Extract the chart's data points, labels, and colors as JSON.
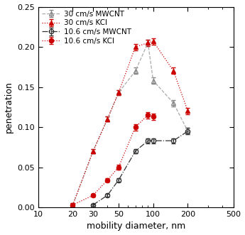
{
  "series": [
    {
      "label": "30 cm/s MWCNT",
      "x": [
        20,
        30,
        40,
        50,
        70,
        90,
        100,
        150,
        200
      ],
      "y": [
        0.003,
        0.07,
        0.11,
        0.143,
        0.17,
        0.205,
        0.158,
        0.13,
        0.095
      ],
      "yerr": [
        0.002,
        0.003,
        0.003,
        0.003,
        0.004,
        0.004,
        0.004,
        0.004,
        0.004
      ],
      "color": "#aaaaaa",
      "marker": "^",
      "mfc": "none",
      "mec": "#888888",
      "ls": "--"
    },
    {
      "label": "30 cm/s KCl",
      "x": [
        20,
        30,
        40,
        50,
        70,
        90,
        100,
        150,
        200
      ],
      "y": [
        0.003,
        0.07,
        0.11,
        0.143,
        0.2,
        0.205,
        0.207,
        0.17,
        0.12
      ],
      "yerr": [
        0.002,
        0.003,
        0.003,
        0.003,
        0.004,
        0.004,
        0.004,
        0.004,
        0.004
      ],
      "color": "#cc0000",
      "marker": "^",
      "mfc": "#cc0000",
      "mec": "#cc0000",
      "ls": ":"
    },
    {
      "label": "10.6 cm/s MWCNT",
      "x": [
        20,
        30,
        40,
        50,
        70,
        90,
        100,
        150,
        200
      ],
      "y": [
        null,
        0.003,
        0.015,
        0.034,
        0.07,
        0.083,
        0.083,
        0.083,
        0.095
      ],
      "yerr": [
        null,
        0.001,
        0.002,
        0.002,
        0.003,
        0.003,
        0.003,
        0.003,
        0.004
      ],
      "color": "#333333",
      "marker": "o",
      "mfc": "none",
      "mec": "#333333",
      "ls": "-."
    },
    {
      "label": "10.6 cm/s KCl",
      "x": [
        20,
        30,
        40,
        50,
        70,
        90,
        100,
        150,
        200
      ],
      "y": [
        0.003,
        0.015,
        0.034,
        0.05,
        0.1,
        0.115,
        0.113,
        null,
        null
      ],
      "yerr": [
        0.001,
        0.002,
        0.002,
        0.003,
        0.004,
        0.004,
        0.004,
        null,
        null
      ],
      "color": "#cc0000",
      "marker": "o",
      "mfc": "#cc0000",
      "mec": "#cc0000",
      "ls": ":"
    }
  ],
  "xlabel": "mobility diameter, nm",
  "ylabel": "penetration",
  "xlim": [
    10,
    500
  ],
  "ylim": [
    0,
    0.25
  ],
  "yticks": [
    0,
    0.05,
    0.1,
    0.15,
    0.2,
    0.25
  ],
  "xticks": [
    10,
    20,
    30,
    50,
    100,
    200,
    500
  ],
  "legend_fontsize": 7.5,
  "axis_fontsize": 9,
  "tick_fontsize": 8
}
